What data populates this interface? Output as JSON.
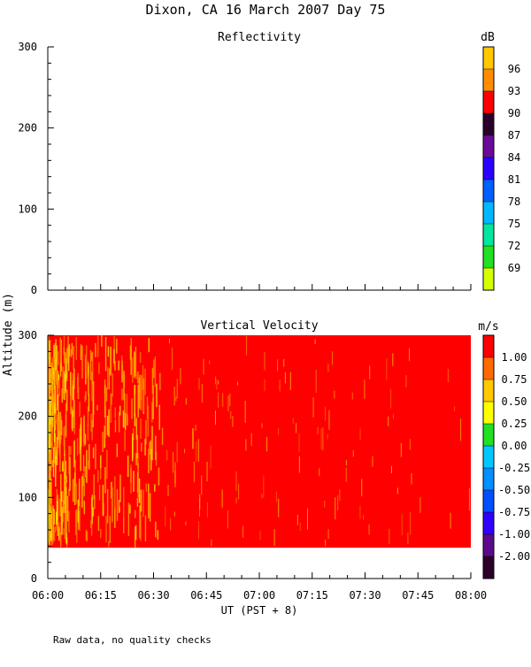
{
  "figure": {
    "title": "Dixon, CA 16 March 2007  Day  75",
    "ylabel": "Altitude (m)",
    "xlabel": "UT  (PST + 8)",
    "footnote": "Raw data, no quality checks"
  },
  "chart_data": [
    {
      "type": "heatmap",
      "title": "Reflectivity",
      "xlabel": "UT  (PST + 8)",
      "ylabel": "Altitude (m)",
      "x_ticks": [
        "06:00",
        "06:15",
        "06:30",
        "06:45",
        "07:00",
        "07:15",
        "07:30",
        "07:45",
        "08:00"
      ],
      "y_ticks": [
        0,
        100,
        200,
        300
      ],
      "ylim": [
        0,
        300
      ],
      "xlim": [
        "06:00",
        "08:00"
      ],
      "colorbar": {
        "unit": "dB",
        "ticks": [
          "69",
          "72",
          "75",
          "78",
          "81",
          "84",
          "87",
          "90",
          "93",
          "96"
        ],
        "colors": [
          "#d4ff00",
          "#22e022",
          "#00e7a0",
          "#00b8ff",
          "#0060ff",
          "#2a00ff",
          "#6a0a9a",
          "#2b0029",
          "#ff0000",
          "#ff8c00",
          "#ffc800"
        ]
      },
      "data": "no data shown"
    },
    {
      "type": "heatmap",
      "title": "Vertical Velocity",
      "xlabel": "UT  (PST + 8)",
      "ylabel": "Altitude (m)",
      "x_ticks": [
        "06:00",
        "06:15",
        "06:30",
        "06:45",
        "07:00",
        "07:15",
        "07:30",
        "07:45",
        "08:00"
      ],
      "y_ticks": [
        0,
        100,
        200,
        300
      ],
      "ylim": [
        0,
        300
      ],
      "xlim": [
        "06:00",
        "08:00"
      ],
      "data_extent": {
        "altitude_min": 38,
        "altitude_max": 300,
        "time_start": "06:00",
        "time_end": "08:00"
      },
      "dominant_value": ">1.00 m/s (red)",
      "variability": "yellow/orange streaks concentrated between 06:00 and 06:30, sparse thereafter",
      "colorbar": {
        "unit": "m/s",
        "ticks": [
          "-2.00",
          "-1.00",
          "-0.75",
          "-0.50",
          "-0.25",
          "0.00",
          "0.25",
          "0.50",
          "0.75",
          "1.00"
        ],
        "colors": [
          "#2b0029",
          "#5a0a8a",
          "#3000ff",
          "#0050ff",
          "#0090ff",
          "#00c8ff",
          "#22e022",
          "#ffff00",
          "#ffc800",
          "#ff6a00",
          "#ff0000"
        ]
      }
    }
  ]
}
